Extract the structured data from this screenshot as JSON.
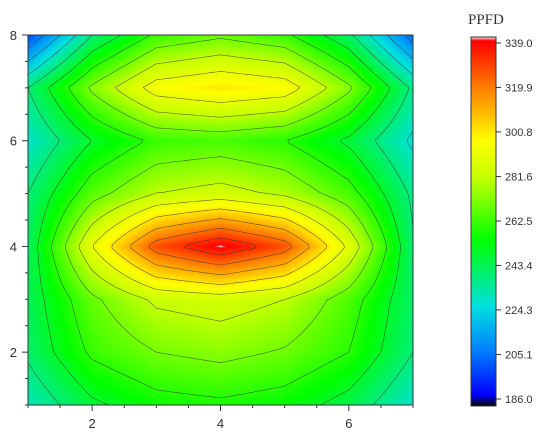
{
  "chart_data": {
    "type": "heatmap",
    "style": "filled-contour",
    "xlim": [
      1,
      7
    ],
    "ylim": [
      1,
      8
    ],
    "x_ticks": [
      2,
      4,
      6
    ],
    "y_ticks": [
      2,
      4,
      6,
      8
    ],
    "x_tick_labels": [
      "2",
      "4",
      "6"
    ],
    "y_tick_labels": [
      "2",
      "4",
      "6",
      "8"
    ],
    "x": [
      1,
      2,
      3,
      4,
      5,
      6,
      7
    ],
    "y": [
      1,
      2,
      3,
      4,
      5,
      6,
      7,
      8
    ],
    "z": [
      [
        232,
        248,
        256,
        258,
        255,
        246,
        230
      ],
      [
        242,
        262,
        270,
        273,
        269,
        260,
        240
      ],
      [
        244,
        268,
        282,
        285,
        280,
        265,
        242
      ],
      [
        243,
        290,
        325,
        339,
        325,
        288,
        241
      ],
      [
        240,
        266,
        280,
        284,
        278,
        264,
        238
      ],
      [
        230,
        250,
        262,
        264,
        260,
        248,
        228
      ],
      [
        240,
        272,
        295,
        300,
        296,
        272,
        238
      ],
      [
        200,
        240,
        262,
        268,
        262,
        242,
        205
      ]
    ],
    "colorbar": {
      "title": "PPFD",
      "min": 186.0,
      "max": 339.0,
      "tick_labels": [
        "339.0",
        "319.9",
        "300.8",
        "281.6",
        "262.5",
        "243.4",
        "224.3",
        "205.1",
        "186.0"
      ],
      "colors": [
        "#000000",
        "#0000ff",
        "#0080ff",
        "#00e0e0",
        "#00ff00",
        "#c8ff00",
        "#ffff00",
        "#ff8000",
        "#ff0000",
        "#ffffff"
      ]
    },
    "contour_line_color": "#333333",
    "grid": false,
    "legend_position": "right"
  }
}
